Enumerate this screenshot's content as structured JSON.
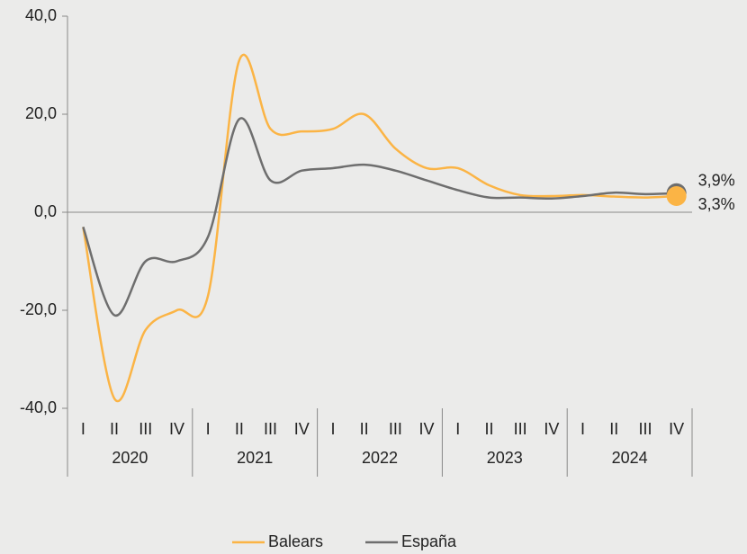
{
  "chart_data": {
    "type": "line",
    "categories": [
      "I",
      "II",
      "III",
      "IV",
      "I",
      "II",
      "III",
      "IV",
      "I",
      "II",
      "III",
      "IV",
      "I",
      "II",
      "III",
      "IV",
      "I",
      "II",
      "III",
      "IV"
    ],
    "groups": [
      "2020",
      "2021",
      "2022",
      "2023",
      "2024"
    ],
    "series": [
      {
        "name": "Balears",
        "color": "#fbb445",
        "values": [
          -3,
          -38,
          -24,
          -20,
          -17,
          31,
          17,
          16.5,
          17,
          20,
          13,
          9,
          9,
          5.5,
          3.5,
          3.3,
          3.5,
          3.2,
          3,
          3.3
        ],
        "value_labels": [
          null,
          null,
          null,
          null,
          null,
          null,
          null,
          null,
          null,
          null,
          null,
          null,
          null,
          null,
          null,
          null,
          null,
          null,
          null,
          "3,3%"
        ]
      },
      {
        "name": "España",
        "color": "#6e6e6e",
        "values": [
          -3,
          -21,
          -10,
          -10,
          -5,
          19,
          6.5,
          8.5,
          9,
          9.7,
          8.5,
          6.5,
          4.5,
          3,
          3,
          2.8,
          3.3,
          4,
          3.7,
          3.9
        ],
        "value_labels": [
          null,
          null,
          null,
          null,
          null,
          null,
          null,
          null,
          null,
          null,
          null,
          null,
          null,
          null,
          null,
          null,
          null,
          null,
          null,
          "3,9%"
        ]
      }
    ],
    "ylim": [
      -40,
      40
    ],
    "yticks": [
      {
        "value": -40,
        "label": "-40,0"
      },
      {
        "value": -20,
        "label": "-20,0"
      },
      {
        "value": 0,
        "label": "0,0"
      },
      {
        "value": 20,
        "label": "20,0"
      },
      {
        "value": 40,
        "label": "40,0"
      }
    ],
    "legend": "bottom"
  }
}
